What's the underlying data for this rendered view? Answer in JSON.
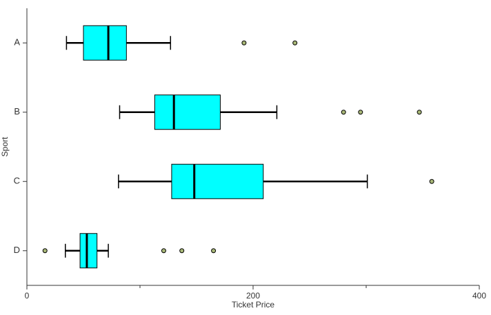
{
  "chart_data": {
    "type": "box",
    "x_label": "Ticket Price",
    "y_label": "Sport",
    "categories": [
      "A",
      "B",
      "C",
      "D"
    ],
    "box_color": "#00ffff",
    "outlier_color": "#a9b878",
    "boxes": [
      {
        "min": 35,
        "q1": 50,
        "median": 72,
        "q3": 88,
        "max": 127,
        "outliers": [
          192,
          237
        ]
      },
      {
        "min": 82,
        "q1": 113,
        "median": 130,
        "q3": 171,
        "max": 221,
        "outliers": [
          280,
          295,
          347
        ]
      },
      {
        "min": 81,
        "q1": 128,
        "median": 148,
        "q3": 209,
        "max": 301,
        "outliers": [
          358
        ]
      },
      {
        "min": 34,
        "q1": 47,
        "median": 53,
        "q3": 62,
        "max": 72,
        "outliers": [
          16,
          121,
          137,
          165
        ]
      }
    ],
    "xlim": [
      0,
      400
    ],
    "xticks": [
      0,
      200,
      400
    ],
    "minor_xticks": [
      100,
      300
    ]
  }
}
